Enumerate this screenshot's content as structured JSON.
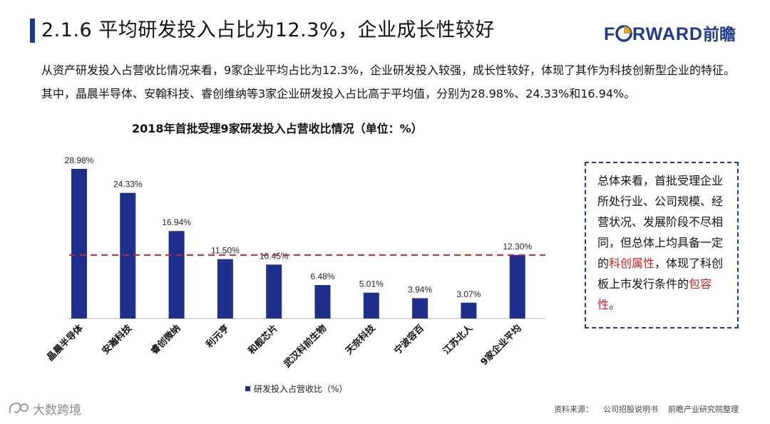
{
  "header": {
    "title": "2.1.6 平均研发投入占比为12.3%，企业成长性较好",
    "logo_text": "FORWARD前瞻"
  },
  "intro_text": "从资产研发投入占营收比情况来看，9家企业平均占比为12.3%，企业研发投入较强，成长性较好，体现了其作为科技创新型企业的特征。其中，晶晨半导体、安翰科技、睿创维纳等3家企业研发投入占比高于平均值，分别为28.98%、24.33%和16.94%。",
  "chart_data": {
    "type": "bar",
    "title": "2018年首批受理9家研发投入占营收比情况（单位：%）",
    "categories": [
      "晶晨半导体",
      "安瀚科技",
      "睿创微纳",
      "利元亨",
      "和舰芯片",
      "武汉科前生物",
      "天奈科技",
      "宁波容百",
      "江苏北人",
      "9家企业平均"
    ],
    "values": [
      28.98,
      24.33,
      16.94,
      11.5,
      10.45,
      6.48,
      5.01,
      3.94,
      3.07,
      12.3
    ],
    "value_labels": [
      "28.98%",
      "24.33%",
      "16.94%",
      "11.50%",
      "10.45%",
      "6.48%",
      "5.01%",
      "3.94%",
      "3.07%",
      "12.30%"
    ],
    "reference_line": {
      "value": 12.3,
      "style": "dashed",
      "color": "#c0282d"
    },
    "legend": {
      "label": "研发投入占营收比（%）",
      "position": "bottom-left"
    },
    "ylim": [
      0,
      30
    ],
    "grid": false,
    "bar_color": "#1f2f8c"
  },
  "note": {
    "text_before": "总体来看，首批受理企业所处行业、公司规模、经营状况、发展阶段不尽相同，但总体上均具备一定的",
    "highlight1": "科创属性",
    "text_middle": "，体现了科创板上市发行条件的",
    "highlight2": "包容性",
    "text_after": "。"
  },
  "source": {
    "label": "资料来源：",
    "items": [
      "公司招股说明书",
      "前瞻产业研究院整理"
    ]
  },
  "watermark": {
    "text": "大数跨境"
  }
}
